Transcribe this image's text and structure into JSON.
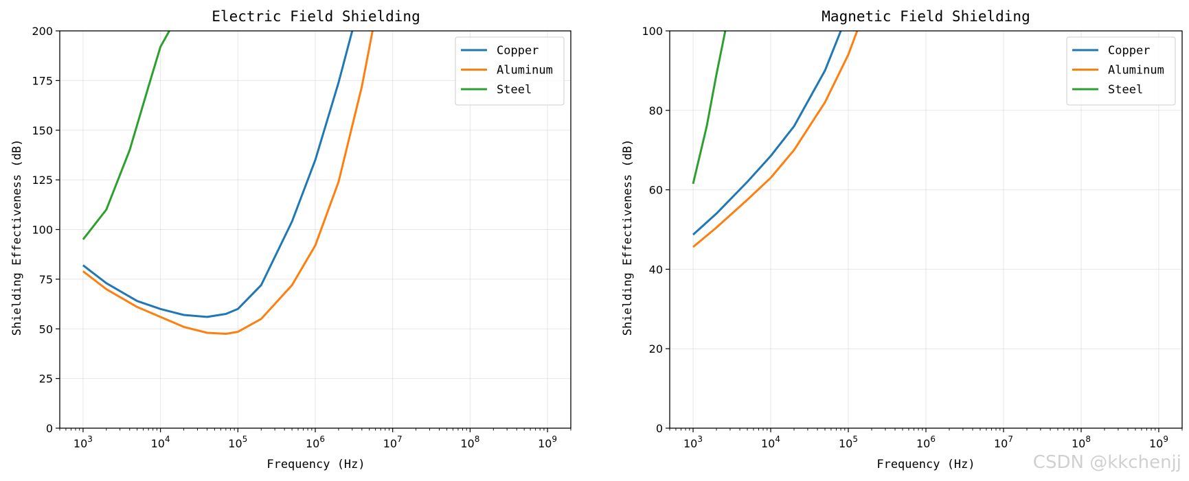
{
  "chart_data": [
    {
      "type": "line",
      "title": "Electric Field Shielding",
      "xlabel": "Frequency (Hz)",
      "ylabel": "Shielding Effectiveness (dB)",
      "xscale": "log",
      "xlim": [
        500,
        2000000000
      ],
      "ylim": [
        0,
        200
      ],
      "xticks": [
        1000,
        10000,
        100000,
        1000000,
        10000000,
        100000000,
        1000000000
      ],
      "xtick_exponents": [
        "3",
        "4",
        "5",
        "6",
        "7",
        "8",
        "9"
      ],
      "xtick_base": "10",
      "yticks": [
        0,
        25,
        50,
        75,
        100,
        125,
        150,
        175,
        200
      ],
      "ytick_labels": [
        "0",
        "25",
        "50",
        "75",
        "100",
        "125",
        "150",
        "175",
        "200"
      ],
      "grid": true,
      "legend_position": "top-right",
      "series": [
        {
          "name": "Copper",
          "color": "#1f77b4",
          "x": [
            1000,
            2000,
            5000,
            10000,
            20000,
            40000,
            70000,
            100000,
            200000,
            500000,
            1000000,
            2000000,
            3000000
          ],
          "y": [
            82,
            73,
            64,
            60,
            57,
            56,
            57.5,
            60,
            72,
            104,
            135,
            174,
            200
          ]
        },
        {
          "name": "Aluminum",
          "color": "#ff7f0e",
          "x": [
            1000,
            2000,
            5000,
            10000,
            20000,
            40000,
            70000,
            100000,
            200000,
            500000,
            1000000,
            2000000,
            4000000,
            5500000
          ],
          "y": [
            79,
            70,
            61,
            56,
            51,
            48,
            47.5,
            48.5,
            55,
            72,
            92,
            124,
            172,
            200
          ]
        },
        {
          "name": "Steel",
          "color": "#2ca02c",
          "x": [
            1000,
            2000,
            4000,
            7000,
            10000,
            13000
          ],
          "y": [
            95,
            110,
            140,
            172,
            192,
            200
          ]
        }
      ]
    },
    {
      "type": "line",
      "title": "Magnetic Field Shielding",
      "xlabel": "Frequency (Hz)",
      "ylabel": "Shielding Effectiveness (dB)",
      "xscale": "log",
      "xlim": [
        500,
        2000000000
      ],
      "ylim": [
        0,
        100
      ],
      "xticks": [
        1000,
        10000,
        100000,
        1000000,
        10000000,
        100000000,
        1000000000
      ],
      "xtick_exponents": [
        "3",
        "4",
        "5",
        "6",
        "7",
        "8",
        "9"
      ],
      "xtick_base": "10",
      "yticks": [
        0,
        20,
        40,
        60,
        80,
        100
      ],
      "ytick_labels": [
        "0",
        "20",
        "40",
        "60",
        "80",
        "100"
      ],
      "grid": true,
      "legend_position": "top-right",
      "series": [
        {
          "name": "Copper",
          "color": "#1f77b4",
          "x": [
            1000,
            2000,
            5000,
            10000,
            20000,
            50000,
            80000
          ],
          "y": [
            48.7,
            54,
            62,
            68.5,
            76,
            90,
            100
          ]
        },
        {
          "name": "Aluminum",
          "color": "#ff7f0e",
          "x": [
            1000,
            2000,
            5000,
            10000,
            20000,
            50000,
            100000,
            130000
          ],
          "y": [
            45.6,
            50.5,
            57.5,
            63,
            70,
            82,
            94,
            100
          ]
        },
        {
          "name": "Steel",
          "color": "#2ca02c",
          "x": [
            1000,
            1500,
            2000,
            2600
          ],
          "y": [
            61.5,
            76,
            89,
            100
          ]
        }
      ]
    }
  ],
  "watermark": "CSDN @kkchenjj"
}
